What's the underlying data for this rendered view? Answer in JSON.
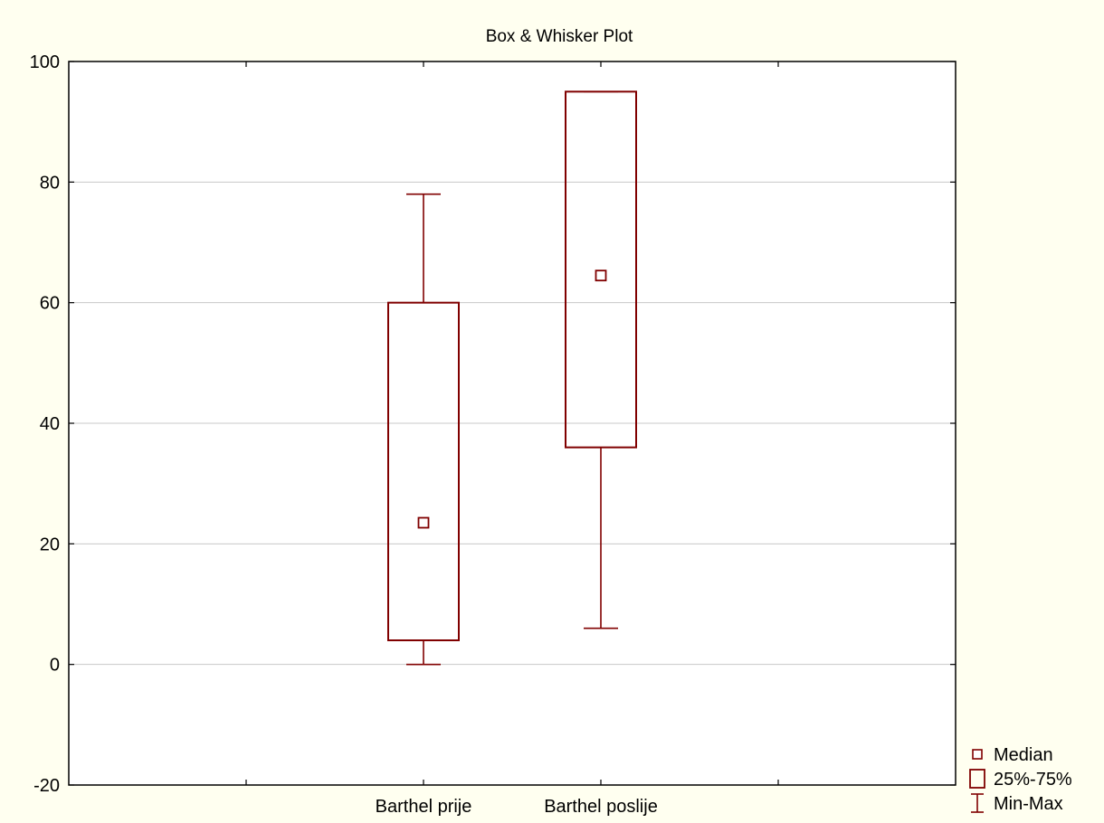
{
  "chart_data": {
    "type": "box",
    "title": "Box & Whisker Plot",
    "xlabel": "",
    "ylabel": "",
    "ylim": [
      -20,
      100
    ],
    "yticks": [
      -20,
      0,
      20,
      40,
      60,
      80,
      100
    ],
    "grid": true,
    "legend_position": "bottom-right",
    "categories": [
      "Barthel prije",
      "Barthel poslije"
    ],
    "boxes": [
      {
        "category": "Barthel prije",
        "min": 0,
        "q1": 4,
        "median": 23.5,
        "q3": 60,
        "max": 78
      },
      {
        "category": "Barthel poslije",
        "min": 6,
        "q1": 36,
        "median": 64.5,
        "q3": 95,
        "max": 95
      }
    ],
    "legend": [
      {
        "symbol": "median",
        "label": "Median"
      },
      {
        "symbol": "box",
        "label": "25%-75%"
      },
      {
        "symbol": "whisker",
        "label": "Min-Max"
      }
    ],
    "colors": {
      "background": "#fffff0",
      "plot_area": "#ffffff",
      "series": "#800000",
      "grid": "#c8c8c8",
      "axis": "#000000"
    }
  }
}
